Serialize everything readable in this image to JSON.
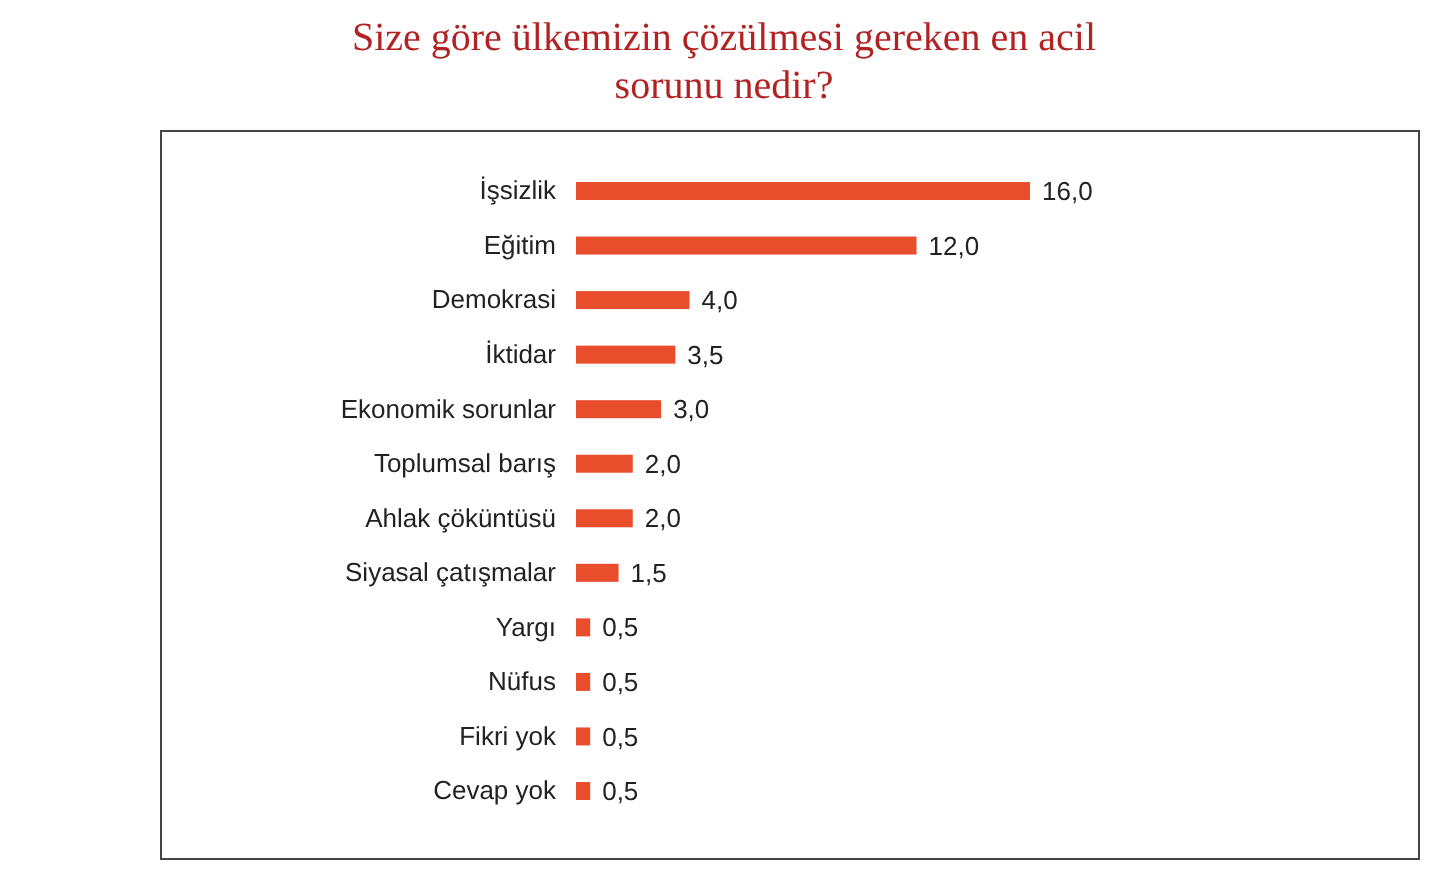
{
  "chart_data": {
    "type": "bar",
    "orientation": "horizontal",
    "title": "Size göre ülkemizin çözülmesi gereken en acil sorunu nedir?",
    "categories": [
      "İşsizlik",
      "Eğitim",
      "Demokrasi",
      "İktidar",
      "Ekonomik sorunlar",
      "Toplumsal barış",
      "Ahlak çöküntüsü",
      "Siyasal çatışmalar",
      "Yargı",
      "Nüfus",
      "Fikri yok",
      "Cevap yok"
    ],
    "values": [
      16,
      12,
      4,
      3.5,
      3,
      2,
      2,
      1.5,
      0.5,
      0.5,
      0.5,
      0.5
    ],
    "value_labels": [
      "16,0",
      "12,0",
      "4,0",
      "3,5",
      "3,0",
      "2,0",
      "2,0",
      "1,5",
      "0,5",
      "0,5",
      "0,5",
      "0,5"
    ],
    "color": "#e84e2c",
    "tick_labels": "y"
  }
}
